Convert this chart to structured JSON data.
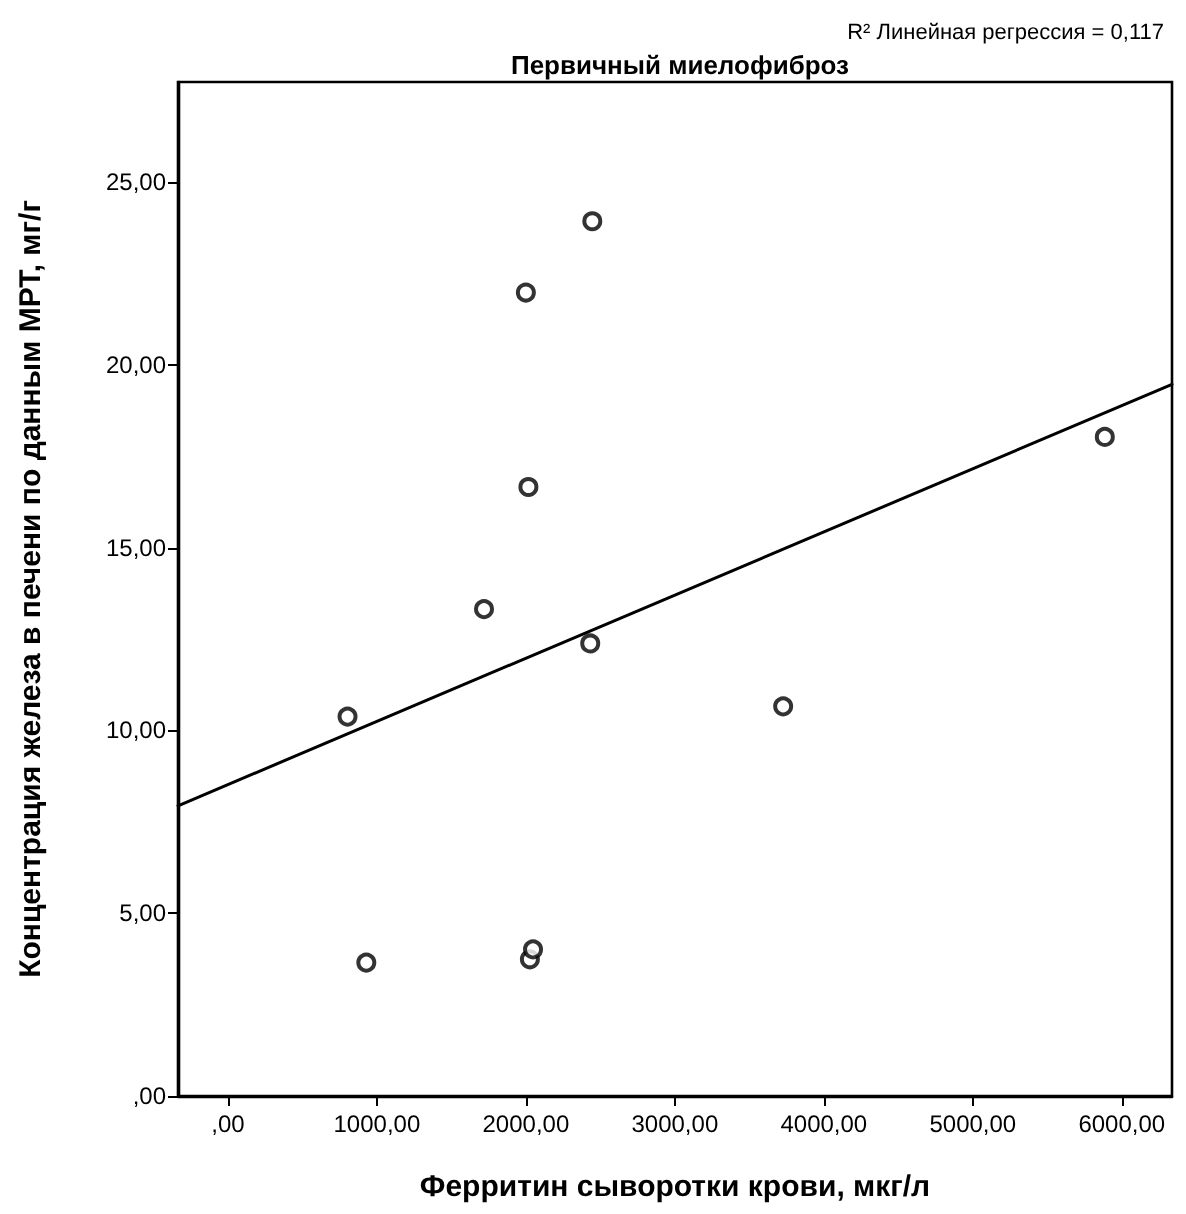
{
  "chart_data": {
    "type": "scatter",
    "title": "Первичный миелофиброз",
    "xlabel": "Ферритин сыворотки крови, мкг/л",
    "ylabel": "Концентрация железа в печени по данным МРТ, мг/г",
    "annotations": [
      "R² Линейная регрессия = 0,117"
    ],
    "xlim": [
      -335,
      6337
    ],
    "xticks": [
      {
        "value": 0,
        "label": ",00"
      },
      {
        "value": 1000,
        "label": "1000,00"
      },
      {
        "value": 2000,
        "label": "2000,00"
      },
      {
        "value": 3000,
        "label": "3000,00"
      },
      {
        "value": 4000,
        "label": "4000,00"
      },
      {
        "value": 5000,
        "label": "5000,00"
      },
      {
        "value": 6000,
        "label": "6000,00"
      }
    ],
    "ylim": [
      0,
      27.74
    ],
    "yticks": [
      {
        "value": 0,
        "label": ",00"
      },
      {
        "value": 5,
        "label": "5,00"
      },
      {
        "value": 10,
        "label": "10,00"
      },
      {
        "value": 15,
        "label": "15,00"
      },
      {
        "value": 20,
        "label": "20,00"
      },
      {
        "value": 25,
        "label": "25,00"
      }
    ],
    "grid": false,
    "series": [
      {
        "color": "#000000",
        "marker": "circle",
        "x": [
          803,
          929,
          1719,
          2432,
          3727,
          2027,
          2048,
          2446,
          2000,
          2017,
          5886
        ],
        "values": [
          10.38,
          3.65,
          13.32,
          12.38,
          10.66,
          3.74,
          4.01,
          23.93,
          21.98,
          16.66,
          18.03
        ]
      },
      {
        "type": "line",
        "color": "#000000",
        "marker": "none",
        "line_style": "solid",
        "x": [
          -335,
          6337
        ],
        "values": [
          7.94,
          19.47
        ]
      }
    ]
  }
}
